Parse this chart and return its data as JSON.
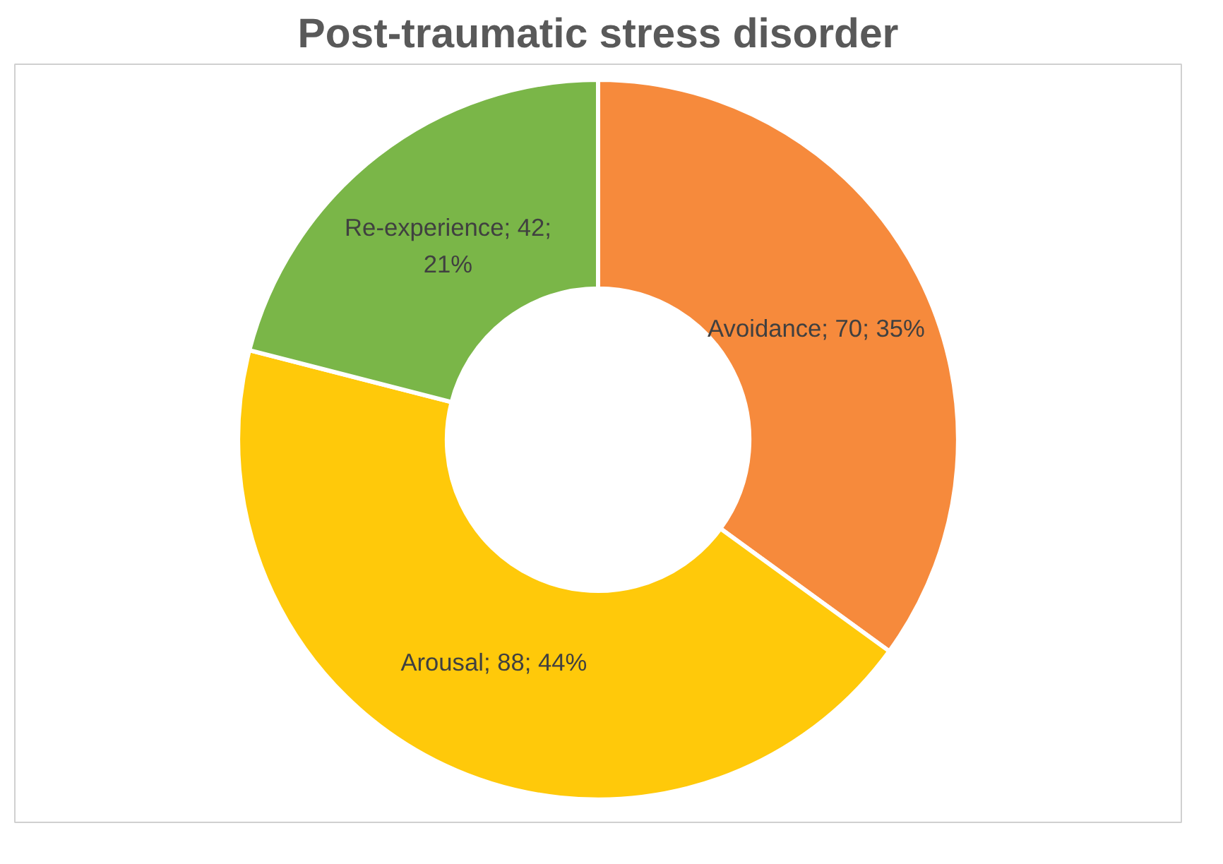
{
  "chart_data": {
    "type": "donut",
    "title": "Post-traumatic stress disorder",
    "categories": [
      "Avoidance",
      "Arousal",
      "Re-experience"
    ],
    "values": [
      70,
      88,
      42
    ],
    "colors": [
      "#f68a3c",
      "#ffc90a",
      "#7ab648"
    ],
    "value_labels": [
      "70; 35%",
      "88; 44%",
      "42; 21%"
    ]
  }
}
